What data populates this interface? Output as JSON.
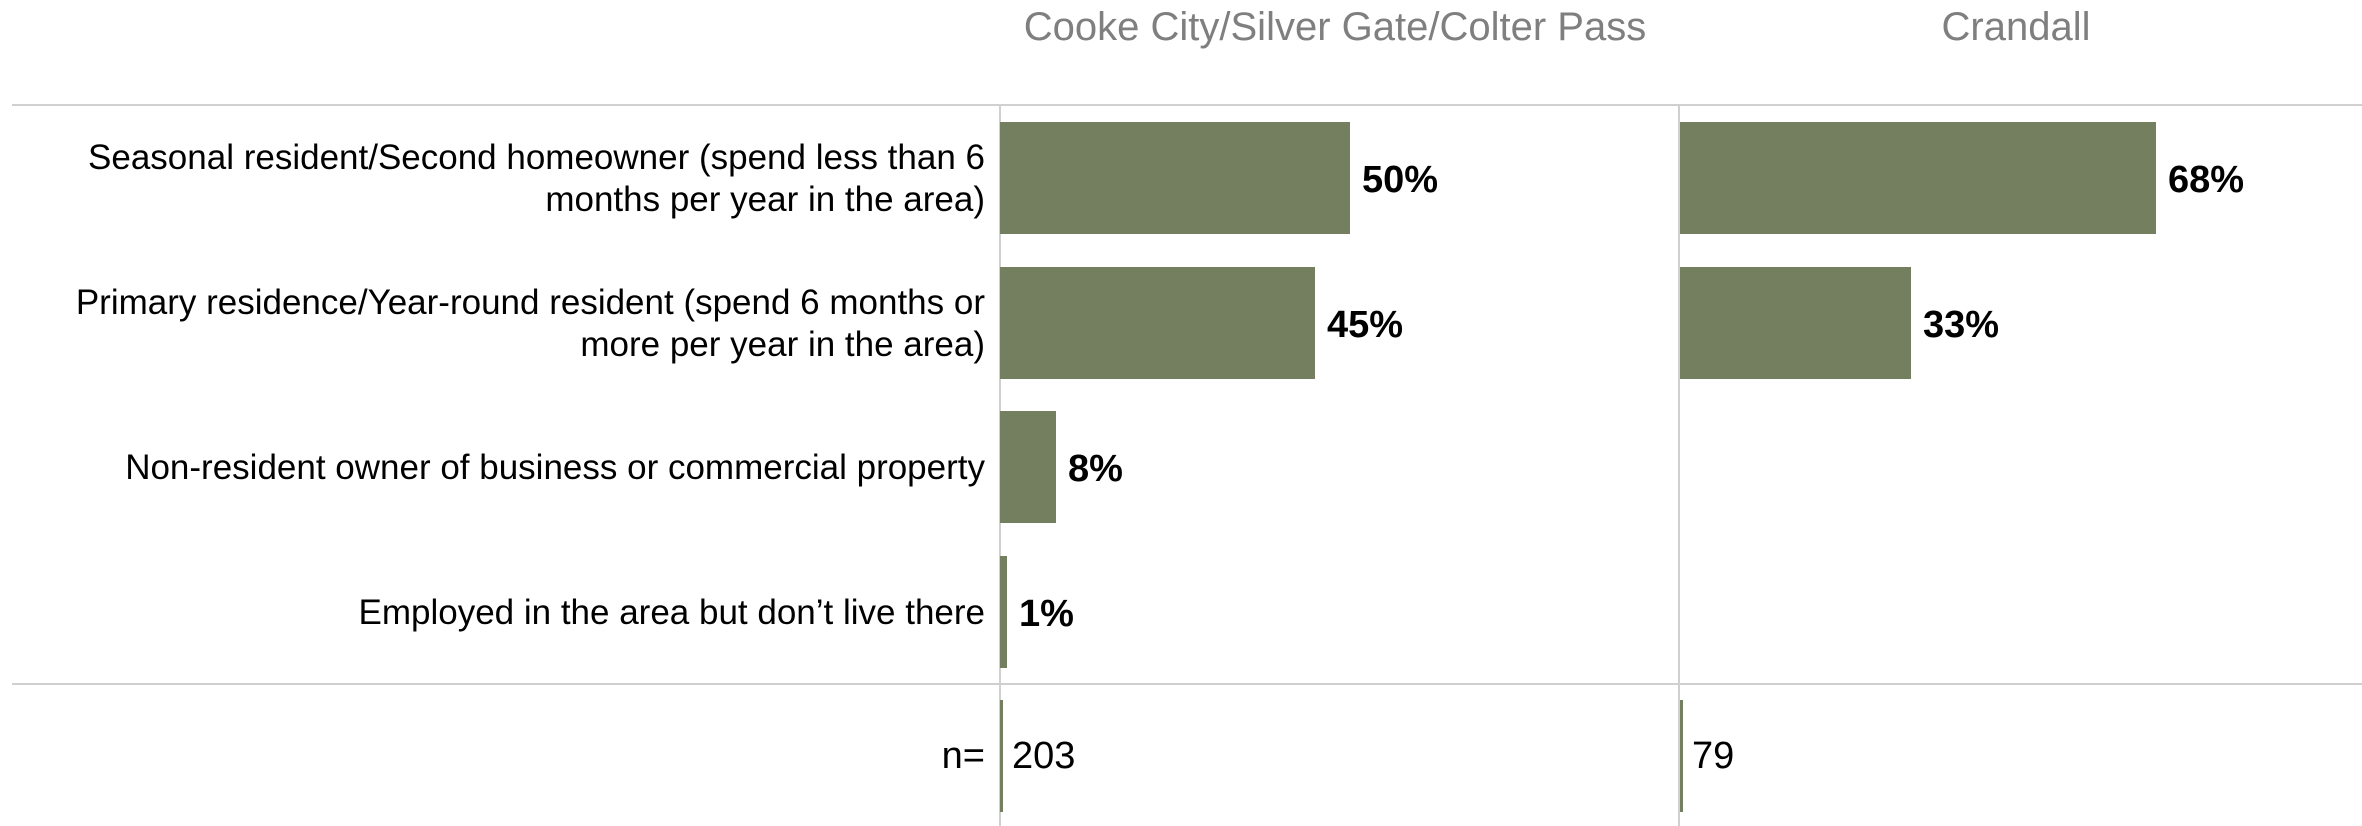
{
  "chart_data": {
    "type": "bar",
    "orientation": "horizontal",
    "layout": "small-multiples",
    "categories": [
      [
        "Seasonal resident/Second homeowner (spend less than 6",
        "months per year in the area)"
      ],
      [
        "Primary residence/Year-round resident (spend 6 months or",
        "more per year in the area)"
      ],
      [
        "Non-resident owner of business or commercial property"
      ],
      [
        "Employed in the area but don’t live there"
      ]
    ],
    "panels": [
      {
        "title": "Cooke City/Silver Gate/Colter Pass",
        "values": [
          50,
          45,
          8,
          1
        ],
        "value_labels": [
          "50%",
          "45%",
          "8%",
          "1%"
        ],
        "n": "203"
      },
      {
        "title": "Crandall",
        "values": [
          68,
          33,
          null,
          null
        ],
        "value_labels": [
          "68%",
          "33%",
          "",
          ""
        ],
        "n": "79"
      }
    ],
    "n_label": "n=",
    "unit": "%",
    "xlim": [
      0,
      100
    ],
    "bar_color": "#737f5f",
    "grid": false,
    "legend": "none"
  }
}
